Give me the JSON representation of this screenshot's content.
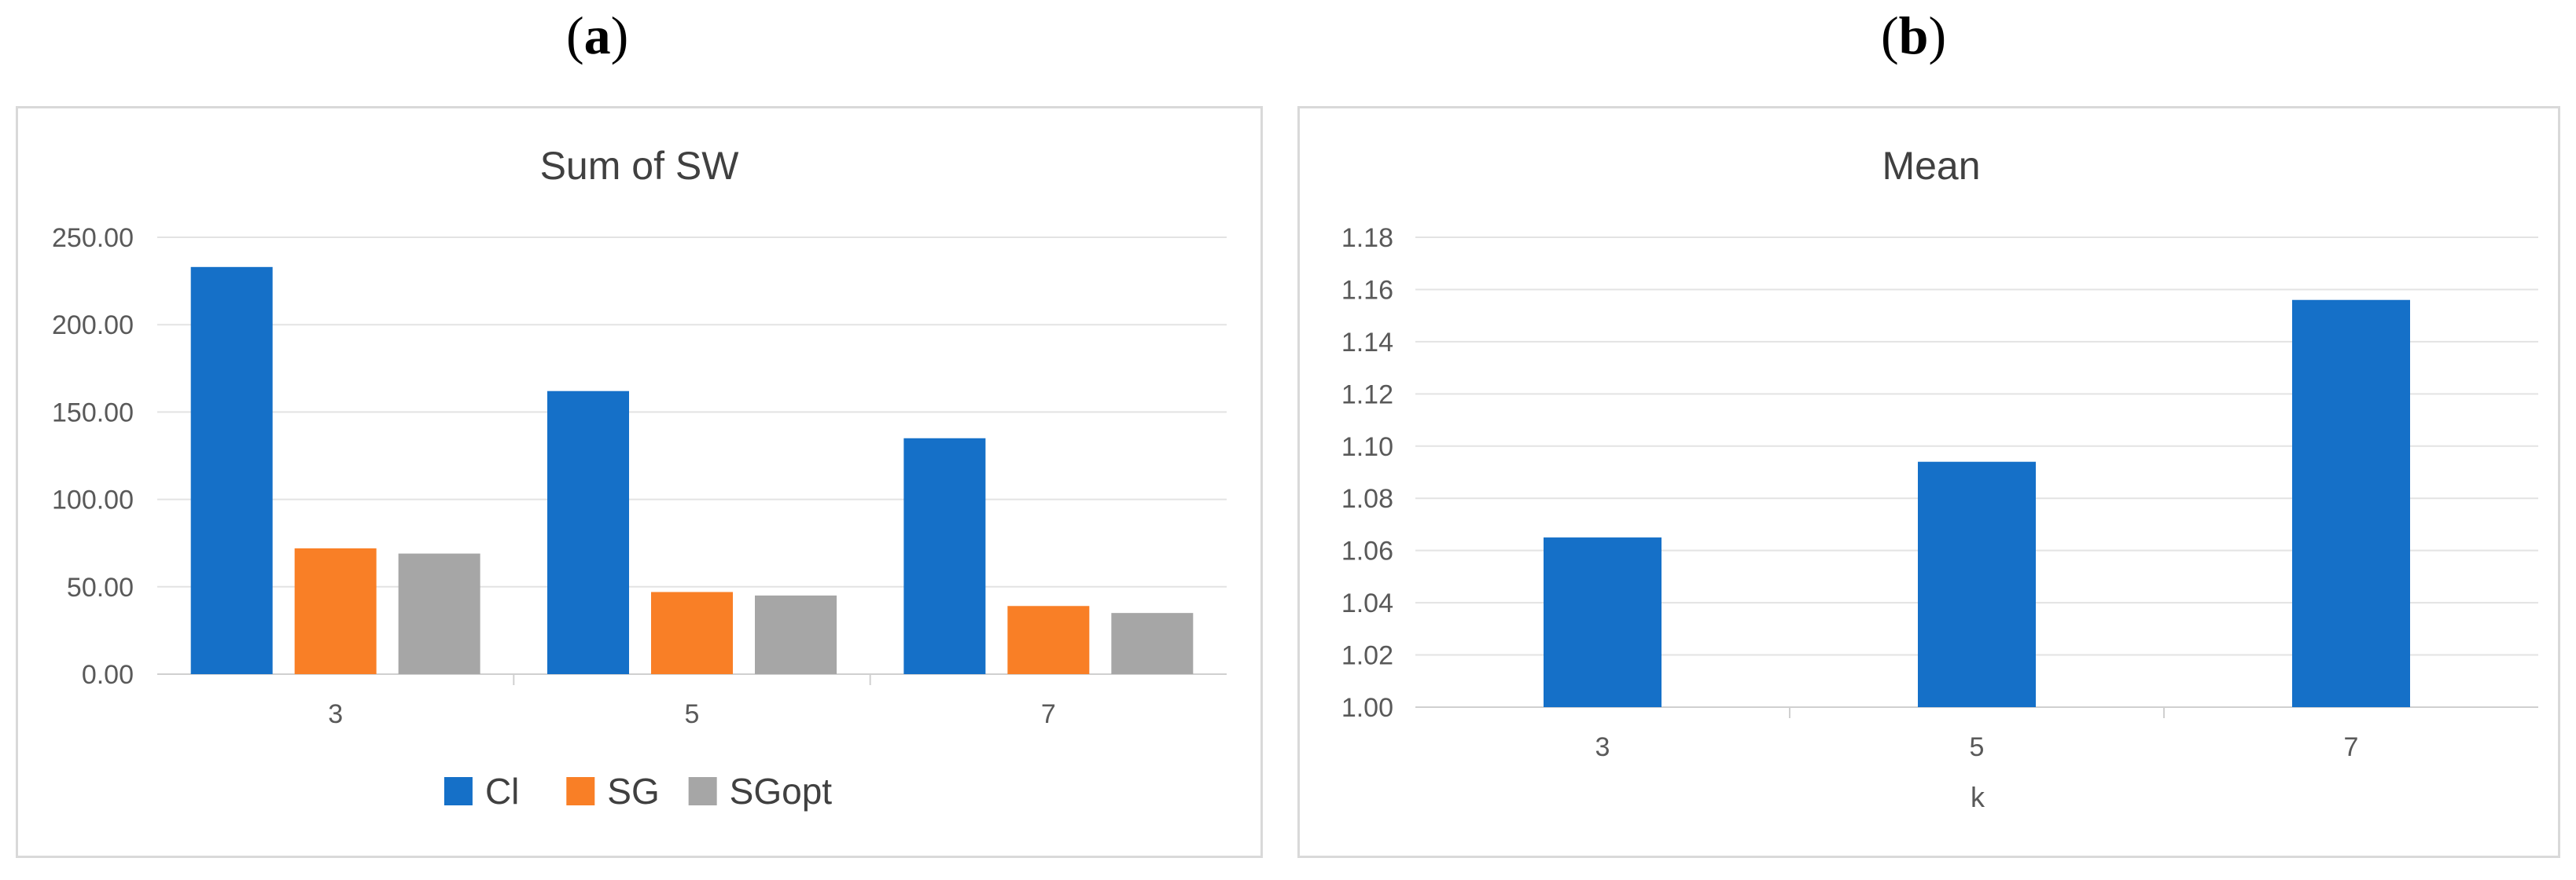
{
  "panels": {
    "a_label": "a",
    "b_label": "b"
  },
  "chart_data": [
    {
      "type": "bar",
      "title": "Sum  of  SW",
      "xlabel": "",
      "ylabel": "",
      "categories": [
        "3",
        "5",
        "7"
      ],
      "series": [
        {
          "name": "Cl",
          "color": "#1570c8",
          "values": [
            233,
            162,
            135
          ]
        },
        {
          "name": "SG",
          "color": "#f97f26",
          "values": [
            72,
            47,
            39
          ]
        },
        {
          "name": "SGopt",
          "color": "#a6a6a6",
          "values": [
            69,
            45,
            35
          ]
        }
      ],
      "ylim": [
        0,
        250
      ],
      "yticks": [
        "0.00",
        "50.00",
        "100.00",
        "150.00",
        "200.00",
        "250.00"
      ],
      "grid": true,
      "legend": "bottom"
    },
    {
      "type": "bar",
      "title": "Mean",
      "xlabel": "k",
      "ylabel": "",
      "categories": [
        "3",
        "5",
        "7"
      ],
      "series": [
        {
          "color": "#1570c8",
          "values": [
            1.065,
            1.094,
            1.156
          ]
        }
      ],
      "ylim": [
        1.0,
        1.18
      ],
      "yticks": [
        "1.00",
        "1.02",
        "1.04",
        "1.06",
        "1.08",
        "1.10",
        "1.12",
        "1.14",
        "1.16",
        "1.18"
      ],
      "grid": true,
      "legend": "none"
    }
  ]
}
